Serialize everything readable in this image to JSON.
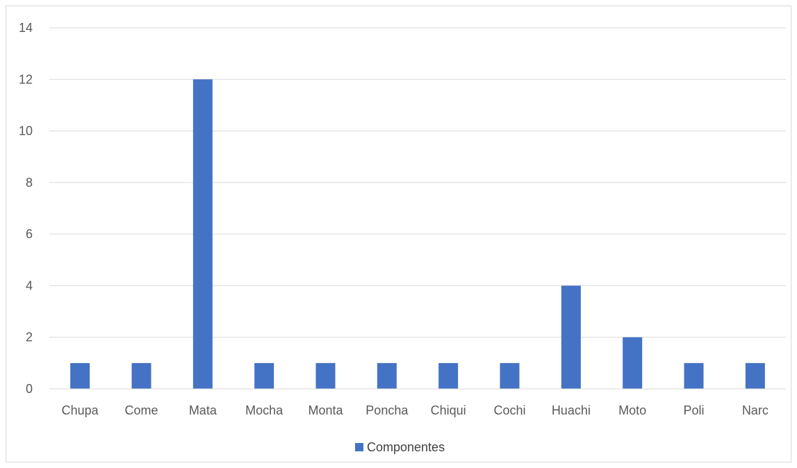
{
  "chart_data": {
    "type": "bar",
    "categories": [
      "Chupa",
      "Come",
      "Mata",
      "Mocha",
      "Monta",
      "Poncha",
      "Chiqui",
      "Cochi",
      "Huachi",
      "Moto",
      "Poli",
      "Narc"
    ],
    "series": [
      {
        "name": "Componentes",
        "values": [
          1,
          1,
          12,
          1,
          1,
          1,
          1,
          1,
          4,
          2,
          1,
          1
        ],
        "color": "#4472c4"
      }
    ],
    "ylim": [
      0,
      14
    ],
    "yticks": [
      0,
      2,
      4,
      6,
      8,
      10,
      12,
      14
    ],
    "grid": true,
    "legend": "bottom"
  }
}
